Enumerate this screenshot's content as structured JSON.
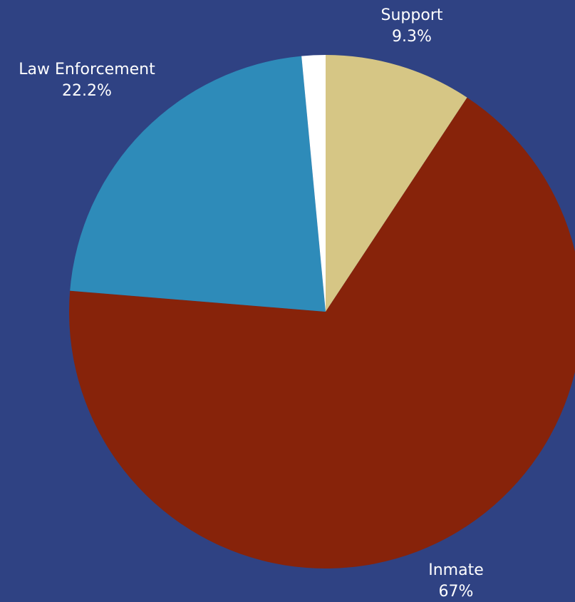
{
  "chart_data": {
    "type": "pie",
    "title": "",
    "background_color": "#2f4283",
    "start_angle_deg": 0,
    "direction": "clockwise",
    "slices": [
      {
        "label": "Support",
        "value_label": "9.3%",
        "value": 9.3,
        "color": "#d6c685"
      },
      {
        "label": "Inmate",
        "value_label": "67%",
        "value": 67.0,
        "color": "#87230a"
      },
      {
        "label": "Law Enforcement",
        "value_label": "22.2%",
        "value": 22.2,
        "color": "#2e8bb9"
      },
      {
        "label": "",
        "value_label": "",
        "value": 1.5,
        "color": "#ffffff"
      }
    ]
  }
}
